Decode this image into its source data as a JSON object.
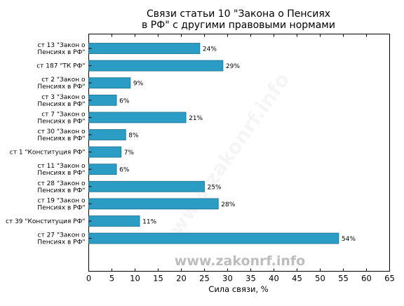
{
  "chart_data": {
    "type": "bar",
    "orientation": "horizontal",
    "title": [
      "Связи статьи 10 \"Закона о Пенсиях",
      "в РФ\" с другими правовыми нормами"
    ],
    "xlabel": "Сила связи, %",
    "ylabel": "",
    "xlim": [
      0,
      65
    ],
    "xticks": [
      0,
      5,
      10,
      15,
      20,
      25,
      30,
      35,
      40,
      45,
      50,
      55,
      60,
      65
    ],
    "grid": false,
    "legend": "none",
    "categories": [
      [
        "ст 13 \"Закон о",
        "Пенсиях в РФ\""
      ],
      [
        "ст 187 \"ТК РФ\""
      ],
      [
        "ст 2 \"Закон о",
        "Пенсиях в РФ\""
      ],
      [
        "ст 3 \"Закон о",
        "Пенсиях в РФ\""
      ],
      [
        "ст 7 \"Закон о",
        "Пенсиях в РФ\""
      ],
      [
        "ст 30 \"Закон о",
        "Пенсиях в РФ\""
      ],
      [
        "ст 1 \"Конституция РФ\""
      ],
      [
        "ст 11 \"Закон о",
        "Пенсиях в РФ\""
      ],
      [
        "ст 28 \"Закон о",
        "Пенсиях в РФ\""
      ],
      [
        "ст 19 \"Закон о",
        "Пенсиях в РФ\""
      ],
      [
        "ст 39 \"Конституция РФ\""
      ],
      [
        "ст 27 \"Закон о",
        "Пенсиях в РФ\""
      ]
    ],
    "values": [
      24,
      29,
      9,
      6,
      21,
      8,
      7,
      6,
      25,
      28,
      11,
      54
    ],
    "value_labels": [
      "24%",
      "29%",
      "9%",
      "6%",
      "21%",
      "8%",
      "7%",
      "6%",
      "25%",
      "28%",
      "11%",
      "54%"
    ],
    "bar_color": "#2b9dc4",
    "bar_edge_color": "#1f6f8e"
  },
  "watermark": "www.zakonrf.info"
}
